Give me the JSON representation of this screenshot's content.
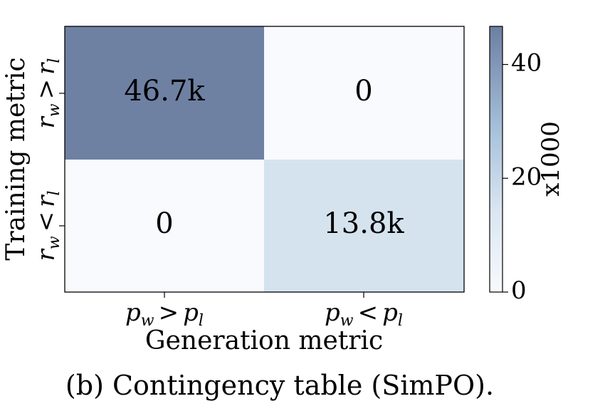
{
  "chart_data": {
    "type": "heatmap",
    "xlabel": "Generation metric",
    "ylabel": "Training metric",
    "x_categories": [
      {
        "main": "p",
        "sub": "w",
        "op": ">",
        "main2": "p",
        "sub2": "l"
      },
      {
        "main": "p",
        "sub": "w",
        "op": "<",
        "main2": "p",
        "sub2": "l"
      }
    ],
    "y_categories": [
      {
        "main": "r",
        "sub": "w",
        "op": ">",
        "main2": "r",
        "sub2": "l"
      },
      {
        "main": "r",
        "sub": "w",
        "op": "<",
        "main2": "r",
        "sub2": "l"
      }
    ],
    "values": [
      [
        46700,
        0
      ],
      [
        0,
        13800
      ]
    ],
    "cell_labels": [
      [
        "46.7k",
        "0"
      ],
      [
        "0",
        "13.8k"
      ]
    ],
    "colorbar": {
      "label": "x1000",
      "ticks": [
        0,
        20,
        40
      ],
      "range": [
        0,
        46.7
      ],
      "color_low": "#f8fafd",
      "color_high": "#6d7fa2"
    }
  },
  "caption": "(b) Contingency table (SimPO)."
}
